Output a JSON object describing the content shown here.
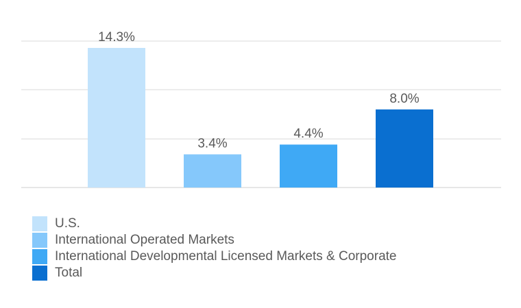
{
  "chart_data": {
    "type": "bar",
    "categories": [
      "U.S.",
      "International Operated Markets",
      "International Developmental Licensed Markets & Corporate",
      "Total"
    ],
    "values": [
      14.3,
      3.4,
      4.4,
      8.0
    ],
    "data_labels": [
      "14.3%",
      "3.4%",
      "4.4%",
      "8.0%"
    ],
    "colors": [
      "#c2e3fc",
      "#85c8fb",
      "#3fa9f5",
      "#0a6fd0"
    ],
    "ylim": [
      0,
      14.3
    ],
    "grid": true,
    "legend_position": "bottom-left",
    "title": "",
    "xlabel": "",
    "ylabel": ""
  }
}
